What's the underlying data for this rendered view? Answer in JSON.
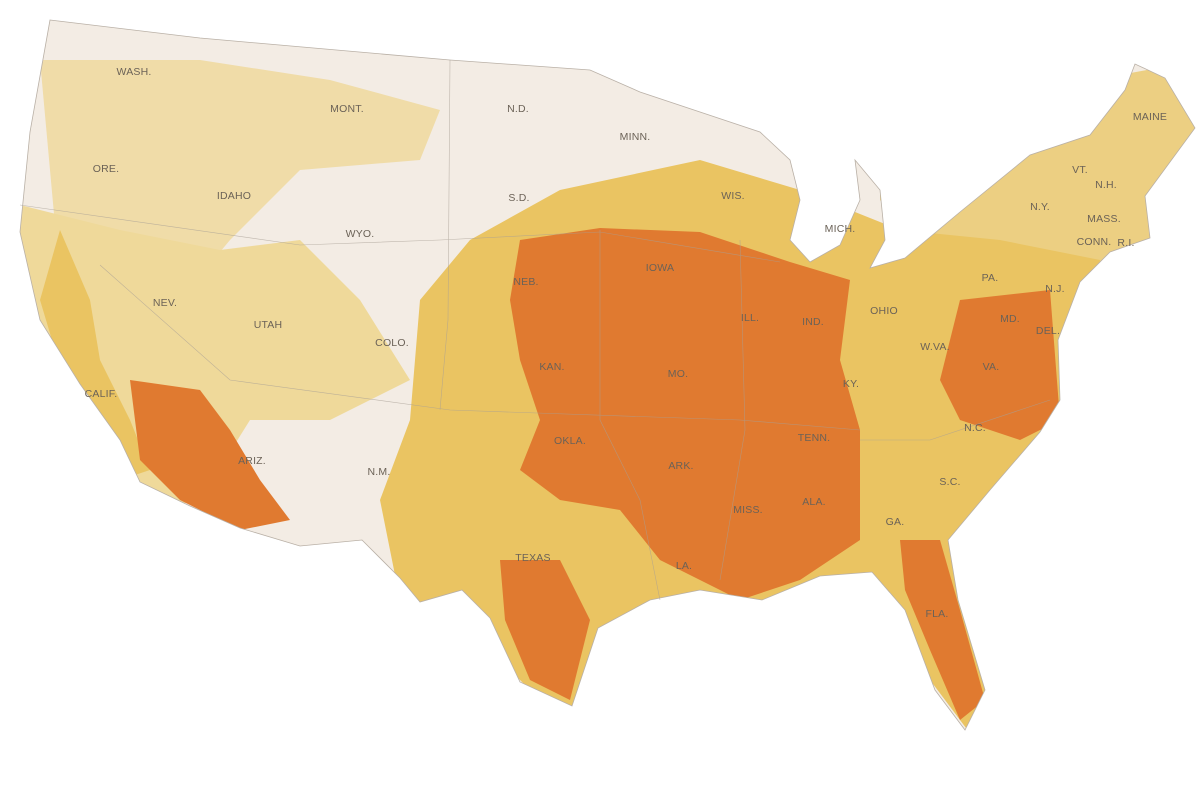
{
  "map": {
    "labels": [
      "WASH.",
      "MONT.",
      "N.D.",
      "MINN.",
      "MAINE",
      "ORE.",
      "IDAHO",
      "S.D.",
      "WIS.",
      "VT.",
      "N.H.",
      "N.Y.",
      "WYO.",
      "MICH.",
      "MASS.",
      "CONN.",
      "R.I.",
      "NEB.",
      "IOWA",
      "PA.",
      "NEV.",
      "UTAH",
      "COLO.",
      "ILL.",
      "IND.",
      "OHIO",
      "N.J.",
      "MD.",
      "DEL.",
      "KAN.",
      "MO.",
      "W.VA.",
      "VA.",
      "CALIF.",
      "KY.",
      "OKLA.",
      "TENN.",
      "N.C.",
      "ARIZ.",
      "ARK.",
      "N.M.",
      "S.C.",
      "MISS.",
      "ALA.",
      "GA.",
      "TEXAS",
      "LA.",
      "FLA."
    ]
  }
}
